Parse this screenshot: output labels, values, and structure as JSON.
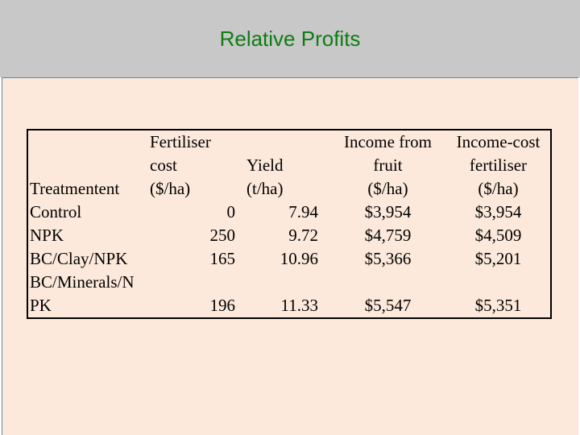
{
  "slide": {
    "title": "Relative Profits"
  },
  "table": {
    "headers": {
      "treatment": [
        "",
        "",
        "Treatmentent"
      ],
      "fertiliser_cost": [
        "Fertiliser",
        "cost",
        "($/ha)"
      ],
      "yield": [
        "",
        "Yield",
        "(t/ha)"
      ],
      "income_fruit": [
        "Income from",
        "fruit",
        "($/ha)"
      ],
      "income_cost": [
        "Income-cost",
        "fertiliser",
        "($/ha)"
      ]
    },
    "rows": [
      {
        "treatment": "Control",
        "fertiliser_cost": "0",
        "yield": "7.94",
        "income_fruit": "$3,954",
        "income_cost": "$3,954"
      },
      {
        "treatment": "NPK",
        "fertiliser_cost": "250",
        "yield": "9.72",
        "income_fruit": "$4,759",
        "income_cost": "$4,509"
      },
      {
        "treatment": "BC/Clay/NPK",
        "fertiliser_cost": "165",
        "yield": "10.96",
        "income_fruit": "$5,366",
        "income_cost": "$5,201"
      },
      {
        "treatment": "BC/Minerals/N",
        "fertiliser_cost": "",
        "yield": "",
        "income_fruit": "",
        "income_cost": ""
      },
      {
        "treatment": "PK",
        "fertiliser_cost": "196",
        "yield": "11.33",
        "income_fruit": "$5,547",
        "income_cost": "$5,351"
      }
    ]
  }
}
